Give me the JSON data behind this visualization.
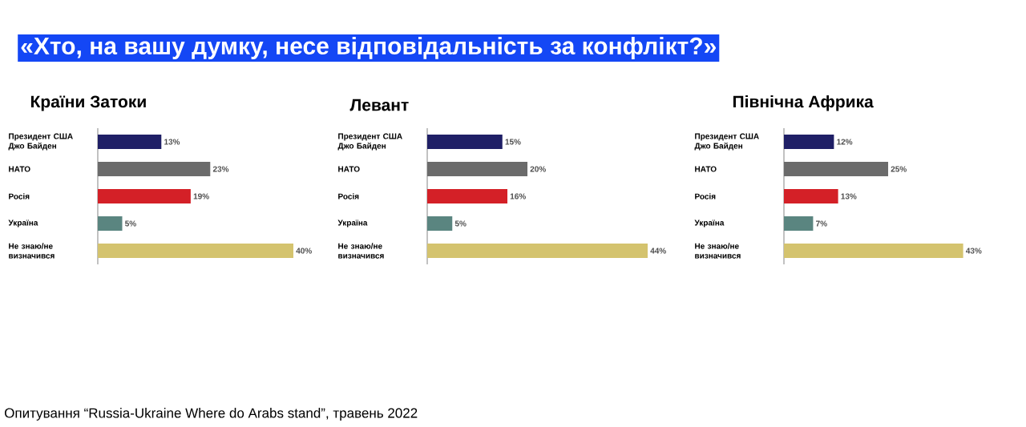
{
  "chart_data": [
    {
      "type": "bar",
      "orientation": "horizontal",
      "title": "Країни Затоки",
      "categories": [
        "Президент США Джо Байден",
        "НАТО",
        "Росія",
        "Україна",
        "Не знаю/не визначився"
      ],
      "values": [
        13,
        23,
        19,
        5,
        40
      ],
      "value_labels": [
        "13%",
        "23%",
        "19%",
        "5%",
        "40%"
      ],
      "colors": [
        "#1f1f66",
        "#6b6b6b",
        "#d42027",
        "#5a8580",
        "#d4c36e"
      ],
      "tick_labels": "y"
    },
    {
      "type": "bar",
      "orientation": "horizontal",
      "title": "Левант",
      "categories": [
        "Президент США Джо Байден",
        "НАТО",
        "Росія",
        "Україна",
        "Не знаю/не визначився"
      ],
      "values": [
        15,
        20,
        16,
        5,
        44
      ],
      "value_labels": [
        "15%",
        "20%",
        "16%",
        "5%",
        "44%"
      ],
      "colors": [
        "#1f1f66",
        "#6b6b6b",
        "#d42027",
        "#5a8580",
        "#d4c36e"
      ],
      "tick_labels": "y"
    },
    {
      "type": "bar",
      "orientation": "horizontal",
      "title": "Північна Африка",
      "categories": [
        "Президент США Джо Байден",
        "НАТО",
        "Росія",
        "Україна",
        "Не знаю/не визначився"
      ],
      "values": [
        12,
        25,
        13,
        7,
        43
      ],
      "value_labels": [
        "12%",
        "25%",
        "13%",
        "7%",
        "43%"
      ],
      "colors": [
        "#1f1f66",
        "#6b6b6b",
        "#d42027",
        "#5a8580",
        "#d4c36e"
      ],
      "tick_labels": "y"
    },
    {
      "type": "other",
      "title": "«Хто, на вашу думку, несе відповідальність за конфлікт?»",
      "annotations": [
        "Опитування “Russia-Ukraine Where do Arabs stand”, травень 2022"
      ]
    }
  ]
}
